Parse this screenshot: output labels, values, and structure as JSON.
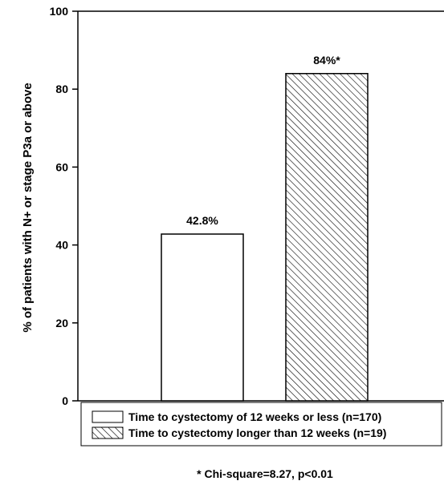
{
  "chart_data": {
    "type": "bar",
    "categories": [
      "Time to cystectomy of 12 weeks or less (n=170)",
      "Time to cystectomy longer than 12 weeks (n=19)"
    ],
    "values": [
      42.8,
      84
    ],
    "data_labels": [
      "42.8%",
      "84%*"
    ],
    "bar_fills": [
      "white",
      "hatched"
    ],
    "title": "",
    "xlabel": "",
    "ylabel": "% of patients with N+ or stage P3a or above",
    "ylim": [
      0,
      100
    ],
    "yticks": [
      0,
      20,
      40,
      60,
      80,
      100
    ],
    "ytick_labels": [
      "0",
      "20",
      "40",
      "60",
      "80",
      "100"
    ],
    "grid": false,
    "legend": {
      "placement": "bottom-inside",
      "entries": [
        "Time to cystectomy of 12 weeks or less (n=170)",
        "Time to cystectomy longer than 12 weeks (n=19)"
      ]
    },
    "footnote": "* Chi-square=8.27, p<0.01"
  },
  "colors": {
    "axis": "#000000",
    "bar_stroke": "#000000",
    "background": "#ffffff"
  }
}
